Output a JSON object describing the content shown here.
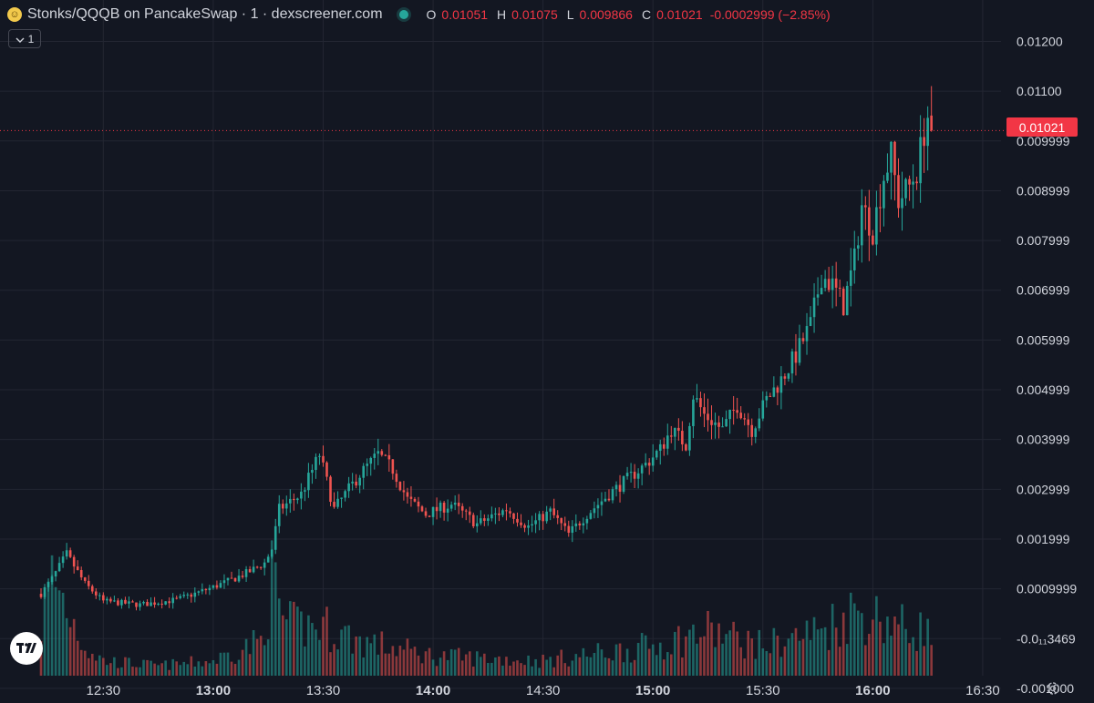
{
  "header": {
    "title": "Stonks/QQQB on PancakeSwap · 1 · dexscreener.com",
    "logo_icon": "smiley-face-icon",
    "status_icon": "live-dot-icon",
    "o_label": "O",
    "o_value": "0.01051",
    "h_label": "H",
    "h_value": "0.01075",
    "l_label": "L",
    "l_value": "0.009866",
    "c_label": "C",
    "c_value": "0.01021",
    "change": "-0.0002999 (−2.85%)"
  },
  "interval_button": {
    "label": "1",
    "icon": "chevron-down-icon"
  },
  "last_price_label": "0.01021",
  "colors": {
    "up": "#26a69a",
    "down": "#ef5350",
    "background": "#131722",
    "grid": "#232632",
    "accent": "#f23645"
  },
  "chart_data": {
    "type": "candlestick",
    "y_tick_labels": [
      "0.01200",
      "0.01100",
      "0.009999",
      "0.008999",
      "0.007999",
      "0.006999",
      "0.005999",
      "0.004999",
      "0.003999",
      "0.002999",
      "0.001999",
      "0.0009999",
      "-0.0₁₁3469",
      "-0.001000"
    ],
    "y_ticks": [
      0.012,
      0.011,
      0.01,
      0.009,
      0.008,
      0.007,
      0.006,
      0.005,
      0.004,
      0.003,
      0.002,
      0.001,
      0.0,
      -0.001
    ],
    "x_tick_labels": [
      {
        "label": "12:30",
        "bold": false
      },
      {
        "label": "13:00",
        "bold": true
      },
      {
        "label": "13:30",
        "bold": false
      },
      {
        "label": "14:00",
        "bold": true
      },
      {
        "label": "14:30",
        "bold": false
      },
      {
        "label": "15:00",
        "bold": true
      },
      {
        "label": "15:30",
        "bold": false
      },
      {
        "label": "16:00",
        "bold": true
      },
      {
        "label": "16:30",
        "bold": false
      }
    ],
    "x_range_minutes": [
      "12:13",
      "16:33"
    ],
    "ylim": [
      -0.00113,
      0.01265
    ],
    "last_price": 0.01021,
    "price_path": [
      [
        "12:13",
        0.0009
      ],
      [
        "12:16",
        0.0012
      ],
      [
        "12:20",
        0.0017
      ],
      [
        "12:25",
        0.0011
      ],
      [
        "12:30",
        0.00075
      ],
      [
        "12:40",
        0.00068
      ],
      [
        "12:50",
        0.00078
      ],
      [
        "12:58",
        0.00098
      ],
      [
        "13:05",
        0.00118
      ],
      [
        "13:10",
        0.00135
      ],
      [
        "13:14",
        0.00152
      ],
      [
        "13:16",
        0.0018
      ],
      [
        "13:18",
        0.0026
      ],
      [
        "13:24",
        0.0029
      ],
      [
        "13:29",
        0.0037
      ],
      [
        "13:33",
        0.0026
      ],
      [
        "13:40",
        0.0033
      ],
      [
        "13:45",
        0.0037
      ],
      [
        "13:49",
        0.0034
      ],
      [
        "13:53",
        0.0028
      ],
      [
        "13:58",
        0.0025
      ],
      [
        "14:05",
        0.0027
      ],
      [
        "14:12",
        0.0023
      ],
      [
        "14:20",
        0.0026
      ],
      [
        "14:26",
        0.00225
      ],
      [
        "14:32",
        0.00255
      ],
      [
        "14:37",
        0.0021
      ],
      [
        "14:42",
        0.0025
      ],
      [
        "14:48",
        0.0029
      ],
      [
        "14:53",
        0.0032
      ],
      [
        "14:58",
        0.0035
      ],
      [
        "15:02",
        0.0038
      ],
      [
        "15:05",
        0.0042
      ],
      [
        "15:09",
        0.0039
      ],
      [
        "15:11",
        0.0049
      ],
      [
        "15:14",
        0.0045
      ],
      [
        "15:19",
        0.0042
      ],
      [
        "15:23",
        0.0047
      ],
      [
        "15:27",
        0.0042
      ],
      [
        "15:31",
        0.0048
      ],
      [
        "15:35",
        0.0052
      ],
      [
        "15:39",
        0.0057
      ],
      [
        "15:43",
        0.0063
      ],
      [
        "15:46",
        0.0073
      ],
      [
        "15:49",
        0.0071
      ],
      [
        "15:52",
        0.0067
      ],
      [
        "15:55",
        0.0076
      ],
      [
        "15:57",
        0.0087
      ],
      [
        "16:00",
        0.0082
      ],
      [
        "16:03",
        0.0093
      ],
      [
        "16:05",
        0.0097
      ],
      [
        "16:07",
        0.0088
      ],
      [
        "16:10",
        0.0091
      ],
      [
        "16:12",
        0.0094
      ],
      [
        "16:14",
        0.0102
      ],
      [
        "16:15",
        0.0105
      ],
      [
        "16:16",
        0.01021
      ]
    ],
    "volume_profile": [
      [
        "12:13",
        0.5
      ],
      [
        "12:16",
        1.0
      ],
      [
        "12:20",
        0.7
      ],
      [
        "12:25",
        0.3
      ],
      [
        "12:30",
        0.15
      ],
      [
        "12:45",
        0.1
      ],
      [
        "13:00",
        0.15
      ],
      [
        "13:13",
        0.35
      ],
      [
        "13:16",
        0.95
      ],
      [
        "13:20",
        0.5
      ],
      [
        "13:30",
        0.5
      ],
      [
        "13:40",
        0.35
      ],
      [
        "14:00",
        0.2
      ],
      [
        "14:30",
        0.15
      ],
      [
        "14:50",
        0.25
      ],
      [
        "15:00",
        0.3
      ],
      [
        "15:15",
        0.45
      ],
      [
        "15:30",
        0.3
      ],
      [
        "15:45",
        0.45
      ],
      [
        "15:55",
        0.65
      ],
      [
        "16:05",
        0.55
      ],
      [
        "16:10",
        0.45
      ],
      [
        "16:16",
        0.5
      ]
    ]
  },
  "tradingview_logo_icon": "tradingview-logo-icon",
  "settings_icon": "gear-icon"
}
